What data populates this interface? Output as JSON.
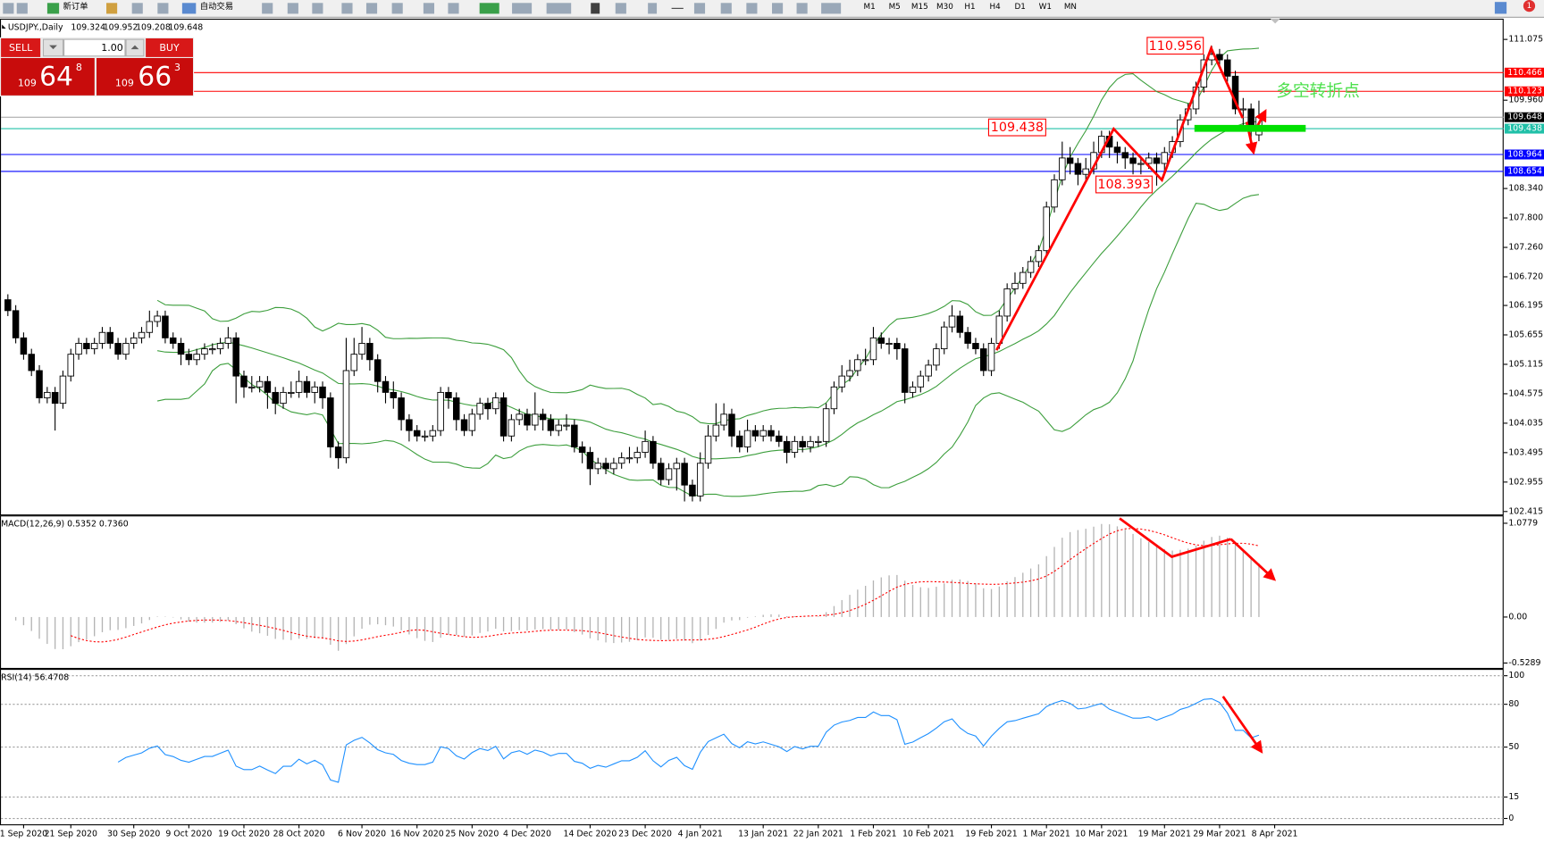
{
  "toolbar": {
    "new_order": "新订单",
    "auto_trading": "自动交易",
    "timeframes": [
      "M1",
      "M5",
      "M15",
      "M30",
      "H1",
      "H4",
      "D1",
      "W1",
      "MN"
    ],
    "notification_count": 1
  },
  "trade_panel": {
    "sell": "SELL",
    "buy": "BUY",
    "lot": "1.00",
    "bid": {
      "big": "109",
      "pips": "64",
      "fraction": "8"
    },
    "ask": {
      "big": "109",
      "pips": "66",
      "fraction": "3"
    }
  },
  "chart_data": {
    "type": "candlestick",
    "symbol": "USDJPY.,Daily",
    "xlim": [
      -1.0,
      190.1
    ],
    "ylim": [
      102.361,
      111.437
    ],
    "yticks": [
      111.075,
      {
        "value": 109.96,
        "label": "109.960"
      },
      {
        "value": 108.34,
        "label": "108.340"
      },
      {
        "value": 107.8,
        "label": "107.800"
      },
      {
        "value": 107.26,
        "label": "107.260"
      },
      {
        "value": 106.72,
        "label": "106.720"
      },
      106.195,
      105.655,
      105.115,
      104.575,
      104.035,
      103.495,
      102.955,
      102.415
    ],
    "xticks": [
      {
        "value": 2,
        "label": "1 Sep 2020"
      },
      {
        "value": 8,
        "label": "21 Sep 2020"
      },
      {
        "value": 16,
        "label": "30 Sep 2020"
      },
      {
        "value": 23,
        "label": "9 Oct 2020"
      },
      {
        "value": 30,
        "label": "19 Oct 2020"
      },
      {
        "value": 37,
        "label": "28 Oct 2020"
      },
      {
        "value": 45,
        "label": "6 Nov 2020"
      },
      {
        "value": 52,
        "label": "16 Nov 2020"
      },
      {
        "value": 59,
        "label": "25 Nov 2020"
      },
      {
        "value": 66,
        "label": "4 Dec 2020"
      },
      {
        "value": 74,
        "label": "14 Dec 2020"
      },
      {
        "value": 81,
        "label": "23 Dec 2020"
      },
      {
        "value": 88,
        "label": "4 Jan 2021"
      },
      {
        "value": 96,
        "label": "13 Jan 2021"
      },
      {
        "value": 103,
        "label": "22 Jan 2021"
      },
      {
        "value": 110,
        "label": "1 Feb 2021"
      },
      {
        "value": 117,
        "label": "10 Feb 2021"
      },
      {
        "value": 125,
        "label": "19 Feb 2021"
      },
      {
        "value": 132,
        "label": "1 Mar 2021"
      },
      {
        "value": 139,
        "label": "10 Mar 2021"
      },
      {
        "value": 147,
        "label": "19 Mar 2021"
      },
      {
        "value": 154,
        "label": "29 Mar 2021"
      },
      {
        "value": 161,
        "label": "8 Apr 2021"
      }
    ],
    "up_color": "#ffffff",
    "down_color": "#000000",
    "bollinger_color": "#3c9e3c",
    "bid_line_color": "#a0a0a0",
    "levels": [
      {
        "value": 110.466,
        "color": "#ff0000"
      },
      {
        "value": 110.123,
        "color": "#ff0000"
      },
      {
        "value": 109.438,
        "color": "#20c0a8"
      },
      {
        "value": 108.964,
        "color": "#0000ff"
      },
      {
        "value": 108.654,
        "color": "#0000ff"
      }
    ],
    "turning_point": "多空转折点",
    "turning_point_color": "#4ee04e",
    "candles": [
      [
        106.3,
        106.4,
        106.0,
        106.1
      ],
      [
        106.1,
        106.2,
        105.5,
        105.6
      ],
      [
        105.6,
        105.7,
        105.2,
        105.3
      ],
      [
        105.3,
        105.4,
        104.9,
        105.0
      ],
      [
        105.0,
        105.1,
        104.4,
        104.5
      ],
      [
        104.5,
        104.7,
        104.4,
        104.6
      ],
      [
        104.6,
        104.7,
        103.9,
        104.4
      ],
      [
        104.4,
        105.0,
        104.3,
        104.9
      ],
      [
        104.9,
        105.4,
        104.8,
        105.3
      ],
      [
        105.3,
        105.6,
        105.2,
        105.5
      ],
      [
        105.5,
        105.6,
        105.3,
        105.4
      ],
      [
        105.4,
        105.6,
        105.3,
        105.5
      ],
      [
        105.5,
        105.8,
        105.4,
        105.7
      ],
      [
        105.7,
        105.8,
        105.4,
        105.5
      ],
      [
        105.5,
        105.6,
        105.2,
        105.3
      ],
      [
        105.3,
        105.6,
        105.2,
        105.5
      ],
      [
        105.5,
        105.7,
        105.4,
        105.6
      ],
      [
        105.6,
        105.8,
        105.5,
        105.7
      ],
      [
        105.7,
        106.1,
        105.6,
        105.9
      ],
      [
        105.9,
        106.1,
        105.8,
        106.0
      ],
      [
        106.0,
        106.1,
        105.5,
        105.6
      ],
      [
        105.6,
        105.7,
        105.4,
        105.5
      ],
      [
        105.5,
        105.6,
        105.1,
        105.3
      ],
      [
        105.3,
        105.4,
        105.1,
        105.2
      ],
      [
        105.2,
        105.4,
        105.1,
        105.3
      ],
      [
        105.3,
        105.5,
        105.2,
        105.4
      ],
      [
        105.4,
        105.5,
        105.3,
        105.4
      ],
      [
        105.4,
        105.6,
        105.3,
        105.5
      ],
      [
        105.5,
        105.8,
        105.4,
        105.6
      ],
      [
        105.6,
        105.7,
        104.4,
        104.9
      ],
      [
        104.9,
        105.0,
        104.5,
        104.7
      ],
      [
        104.7,
        104.9,
        104.6,
        104.7
      ],
      [
        104.7,
        104.9,
        104.6,
        104.8
      ],
      [
        104.8,
        104.9,
        104.3,
        104.6
      ],
      [
        104.6,
        104.7,
        104.2,
        104.4
      ],
      [
        104.4,
        104.7,
        104.3,
        104.6
      ],
      [
        104.6,
        104.8,
        104.5,
        104.6
      ],
      [
        104.6,
        105.0,
        104.5,
        104.8
      ],
      [
        104.8,
        104.9,
        104.5,
        104.6
      ],
      [
        104.6,
        104.8,
        104.4,
        104.7
      ],
      [
        104.7,
        104.8,
        104.3,
        104.5
      ],
      [
        104.5,
        104.6,
        103.4,
        103.6
      ],
      [
        103.6,
        103.7,
        103.2,
        103.4
      ],
      [
        103.4,
        105.6,
        103.3,
        105.0
      ],
      [
        105.0,
        105.6,
        104.9,
        105.3
      ],
      [
        105.3,
        105.8,
        105.2,
        105.5
      ],
      [
        105.5,
        105.6,
        105.0,
        105.2
      ],
      [
        105.2,
        105.3,
        104.6,
        104.8
      ],
      [
        104.8,
        104.9,
        104.4,
        104.6
      ],
      [
        104.6,
        104.8,
        104.3,
        104.5
      ],
      [
        104.5,
        104.6,
        103.9,
        104.1
      ],
      [
        104.1,
        104.2,
        103.7,
        103.9
      ],
      [
        103.9,
        104.0,
        103.7,
        103.8
      ],
      [
        103.8,
        103.9,
        103.7,
        103.8
      ],
      [
        103.8,
        104.0,
        103.7,
        103.9
      ],
      [
        103.9,
        104.7,
        103.8,
        104.6
      ],
      [
        104.6,
        104.7,
        104.3,
        104.5
      ],
      [
        104.5,
        104.6,
        103.9,
        104.1
      ],
      [
        104.1,
        104.2,
        103.8,
        103.9
      ],
      [
        103.9,
        104.3,
        103.8,
        104.2
      ],
      [
        104.2,
        104.5,
        104.1,
        104.4
      ],
      [
        104.4,
        104.5,
        104.1,
        104.3
      ],
      [
        104.3,
        104.6,
        104.2,
        104.5
      ],
      [
        104.5,
        104.6,
        103.7,
        103.8
      ],
      [
        103.8,
        104.2,
        103.7,
        104.1
      ],
      [
        104.1,
        104.3,
        104.0,
        104.2
      ],
      [
        104.2,
        104.3,
        103.9,
        104.0
      ],
      [
        104.0,
        104.6,
        103.9,
        104.2
      ],
      [
        104.2,
        104.3,
        103.9,
        104.1
      ],
      [
        104.1,
        104.2,
        103.8,
        103.9
      ],
      [
        103.9,
        104.1,
        103.8,
        104.0
      ],
      [
        104.0,
        104.2,
        103.9,
        104.0
      ],
      [
        104.0,
        104.1,
        103.5,
        103.6
      ],
      [
        103.6,
        103.7,
        103.3,
        103.5
      ],
      [
        103.5,
        103.6,
        102.9,
        103.2
      ],
      [
        103.2,
        103.4,
        103.1,
        103.3
      ],
      [
        103.3,
        103.4,
        103.1,
        103.2
      ],
      [
        103.2,
        103.4,
        103.1,
        103.3
      ],
      [
        103.3,
        103.5,
        103.2,
        103.4
      ],
      [
        103.4,
        103.6,
        103.3,
        103.4
      ],
      [
        103.4,
        103.6,
        103.3,
        103.5
      ],
      [
        103.5,
        103.9,
        103.4,
        103.7
      ],
      [
        103.7,
        103.8,
        103.2,
        103.3
      ],
      [
        103.3,
        103.4,
        102.9,
        103.0
      ],
      [
        103.0,
        103.3,
        102.9,
        103.2
      ],
      [
        103.2,
        103.4,
        102.8,
        103.3
      ],
      [
        103.3,
        103.4,
        102.6,
        102.9
      ],
      [
        102.9,
        103.0,
        102.6,
        102.7
      ],
      [
        102.7,
        103.5,
        102.6,
        103.3
      ],
      [
        103.3,
        104.0,
        103.2,
        103.8
      ],
      [
        103.8,
        104.4,
        103.7,
        104.0
      ],
      [
        104.0,
        104.4,
        103.9,
        104.2
      ],
      [
        104.2,
        104.3,
        103.6,
        103.8
      ],
      [
        103.8,
        103.9,
        103.5,
        103.6
      ],
      [
        103.6,
        104.1,
        103.5,
        103.9
      ],
      [
        103.9,
        104.0,
        103.7,
        103.8
      ],
      [
        103.8,
        104.0,
        103.7,
        103.9
      ],
      [
        103.9,
        104.0,
        103.7,
        103.8
      ],
      [
        103.8,
        103.9,
        103.6,
        103.7
      ],
      [
        103.7,
        103.8,
        103.3,
        103.5
      ],
      [
        103.5,
        103.8,
        103.4,
        103.7
      ],
      [
        103.7,
        103.8,
        103.5,
        103.6
      ],
      [
        103.6,
        103.8,
        103.5,
        103.7
      ],
      [
        103.7,
        103.8,
        103.6,
        103.7
      ],
      [
        103.7,
        104.4,
        103.6,
        104.3
      ],
      [
        104.3,
        104.8,
        104.2,
        104.7
      ],
      [
        104.7,
        105.1,
        104.6,
        104.9
      ],
      [
        104.9,
        105.2,
        104.8,
        105.0
      ],
      [
        105.0,
        105.3,
        104.9,
        105.2
      ],
      [
        105.2,
        105.4,
        105.1,
        105.2
      ],
      [
        105.2,
        105.8,
        105.1,
        105.6
      ],
      [
        105.6,
        105.7,
        105.4,
        105.5
      ],
      [
        105.5,
        105.6,
        105.3,
        105.5
      ],
      [
        105.5,
        105.6,
        105.2,
        105.4
      ],
      [
        105.4,
        105.5,
        104.4,
        104.6
      ],
      [
        104.6,
        104.8,
        104.5,
        104.7
      ],
      [
        104.7,
        105.0,
        104.6,
        104.9
      ],
      [
        104.9,
        105.2,
        104.8,
        105.1
      ],
      [
        105.1,
        105.5,
        105.0,
        105.4
      ],
      [
        105.4,
        105.9,
        105.3,
        105.8
      ],
      [
        105.8,
        106.2,
        105.7,
        106.0
      ],
      [
        106.0,
        106.1,
        105.6,
        105.7
      ],
      [
        105.7,
        105.8,
        105.4,
        105.5
      ],
      [
        105.5,
        105.6,
        105.3,
        105.4
      ],
      [
        105.4,
        105.5,
        104.9,
        105.0
      ],
      [
        105.0,
        105.6,
        104.9,
        105.5
      ],
      [
        105.5,
        106.1,
        105.4,
        106.0
      ],
      [
        106.0,
        106.6,
        105.9,
        106.5
      ],
      [
        106.5,
        106.8,
        106.4,
        106.6
      ],
      [
        106.6,
        106.9,
        106.5,
        106.8
      ],
      [
        106.8,
        107.1,
        106.7,
        107.0
      ],
      [
        107.0,
        107.3,
        106.9,
        107.2
      ],
      [
        107.2,
        108.1,
        107.1,
        108.0
      ],
      [
        108.0,
        108.6,
        107.9,
        108.5
      ],
      [
        108.5,
        109.2,
        108.4,
        108.9
      ],
      [
        108.9,
        109.1,
        108.6,
        108.8
      ],
      [
        108.8,
        108.9,
        108.4,
        108.6
      ],
      [
        108.6,
        108.9,
        108.5,
        108.7
      ],
      [
        108.7,
        109.2,
        108.6,
        109.0
      ],
      [
        109.0,
        109.4,
        108.9,
        109.3
      ],
      [
        109.3,
        109.4,
        108.9,
        109.1
      ],
      [
        109.1,
        109.2,
        108.8,
        109.0
      ],
      [
        109.0,
        109.1,
        108.7,
        108.9
      ],
      [
        108.9,
        109.0,
        108.6,
        108.8
      ],
      [
        108.8,
        108.9,
        108.6,
        108.8
      ],
      [
        108.8,
        109.0,
        108.7,
        108.9
      ],
      [
        108.9,
        109.0,
        108.393,
        108.8
      ],
      [
        108.8,
        109.1,
        108.6,
        109.0
      ],
      [
        109.0,
        109.3,
        108.9,
        109.2
      ],
      [
        109.2,
        109.7,
        109.1,
        109.6
      ],
      [
        109.6,
        109.9,
        109.5,
        109.8
      ],
      [
        109.8,
        110.3,
        109.7,
        110.2
      ],
      [
        110.2,
        110.8,
        110.1,
        110.7
      ],
      [
        110.7,
        110.956,
        110.6,
        110.8
      ],
      [
        110.8,
        110.9,
        110.6,
        110.7
      ],
      [
        110.7,
        110.8,
        110.3,
        110.4
      ],
      [
        110.4,
        110.5,
        109.7,
        109.8
      ],
      [
        109.8,
        110.0,
        109.4,
        109.8
      ],
      [
        109.8,
        109.9,
        109.2,
        109.5
      ],
      [
        109.324,
        109.952,
        109.208,
        109.648
      ]
    ],
    "macd": {
      "label": "MACD(12,26,9) 0.5352 0.7360",
      "ylim": [
        -0.585,
        1.1565
      ],
      "yticks": [
        1.0779,
        {
          "value": 0,
          "label": "0.00"
        },
        -0.5289
      ],
      "hist_color": "#b4b4b4",
      "signal_color": "#ff0000"
    },
    "rsi": {
      "label": "RSI(14) 56.4708",
      "ylim": [
        -4.1,
        104.1
      ],
      "yticks": [
        100,
        80,
        50,
        15,
        0
      ],
      "color": "#1e90ff"
    }
  }
}
